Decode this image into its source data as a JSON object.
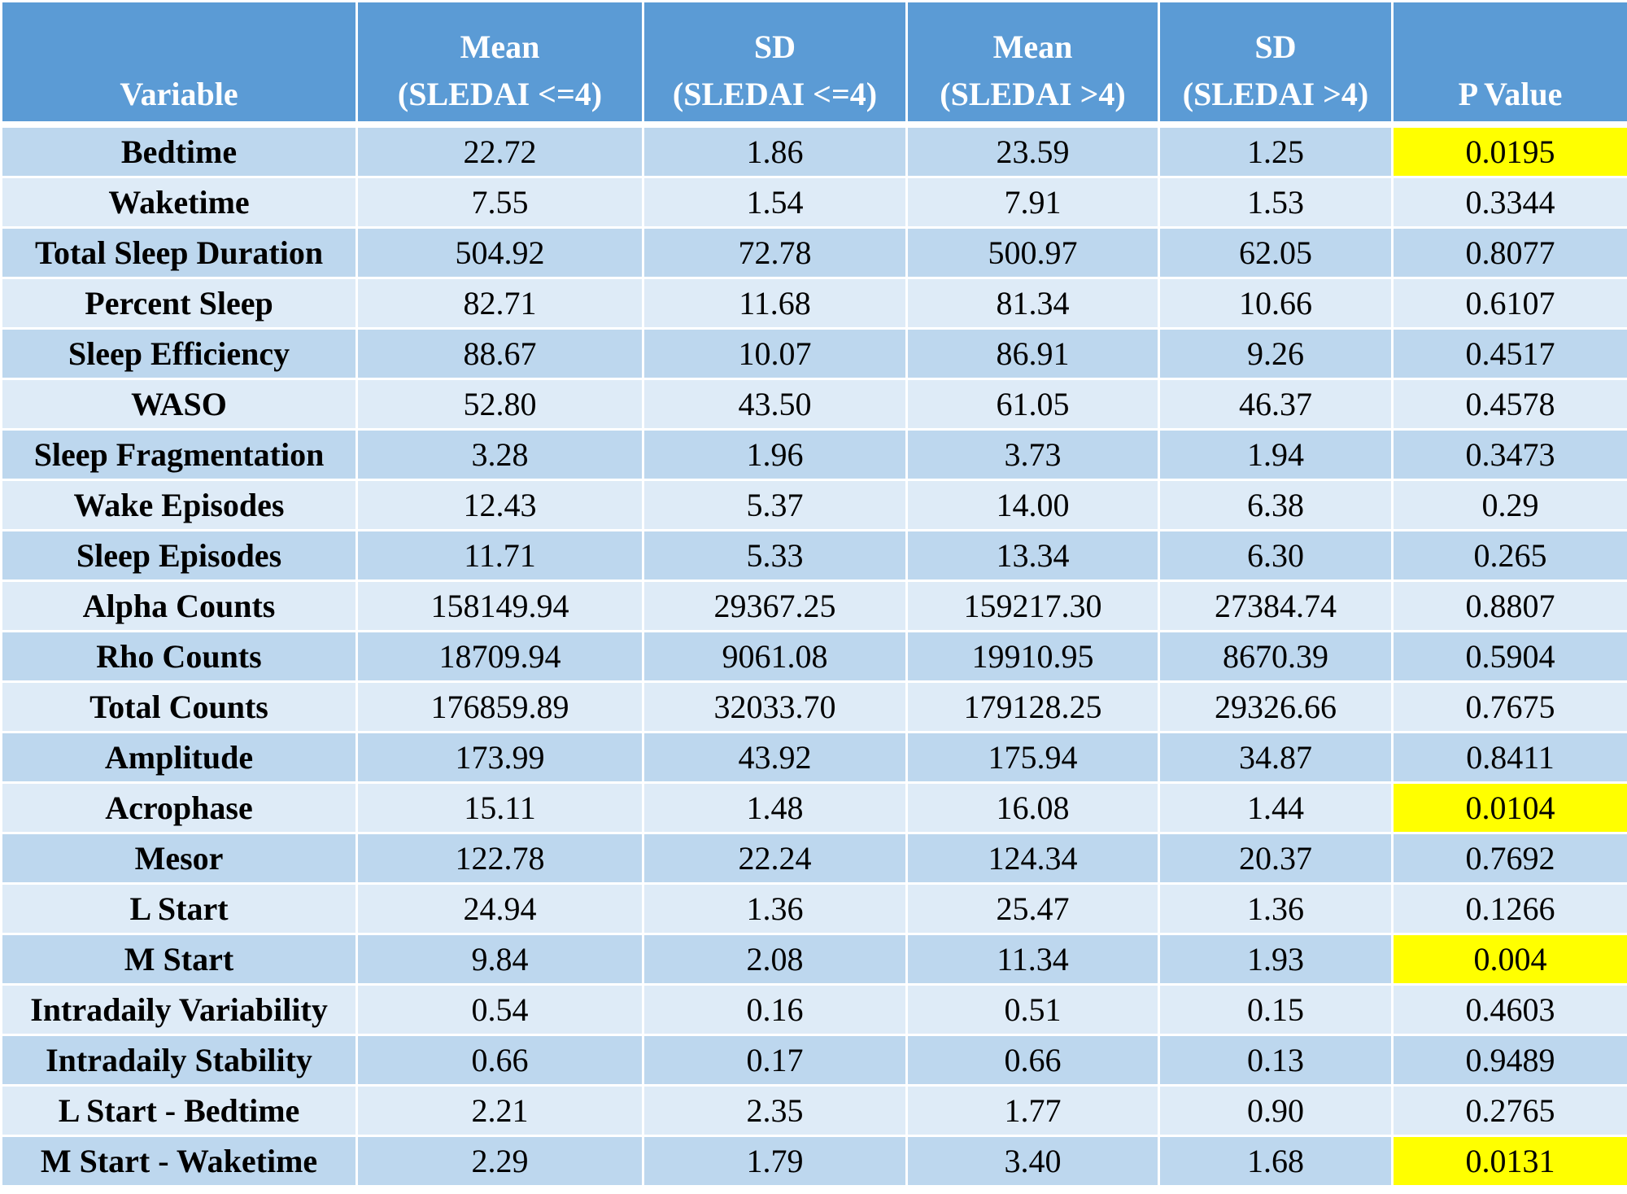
{
  "table": {
    "header": [
      [
        "Variable"
      ],
      [
        "Mean",
        "(SLEDAI <=4)"
      ],
      [
        "SD",
        "(SLEDAI <=4)"
      ],
      [
        "Mean",
        "(SLEDAI >4)"
      ],
      [
        "SD",
        "(SLEDAI >4)"
      ],
      [
        "P Value"
      ]
    ],
    "rows": [
      [
        "Bedtime",
        "22.72",
        "1.86",
        "23.59",
        "1.25",
        "0.0195"
      ],
      [
        "Waketime",
        "7.55",
        "1.54",
        "7.91",
        "1.53",
        "0.3344"
      ],
      [
        "Total Sleep Duration",
        "504.92",
        "72.78",
        "500.97",
        "62.05",
        "0.8077"
      ],
      [
        "Percent Sleep",
        "82.71",
        "11.68",
        "81.34",
        "10.66",
        "0.6107"
      ],
      [
        "Sleep Efficiency",
        "88.67",
        "10.07",
        "86.91",
        "9.26",
        "0.4517"
      ],
      [
        "WASO",
        "52.80",
        "43.50",
        "61.05",
        "46.37",
        "0.4578"
      ],
      [
        "Sleep Fragmentation",
        "3.28",
        "1.96",
        "3.73",
        "1.94",
        "0.3473"
      ],
      [
        "Wake Episodes",
        "12.43",
        "5.37",
        "14.00",
        "6.38",
        "0.29"
      ],
      [
        "Sleep Episodes",
        "11.71",
        "5.33",
        "13.34",
        "6.30",
        "0.265"
      ],
      [
        "Alpha Counts",
        "158149.94",
        "29367.25",
        "159217.30",
        "27384.74",
        "0.8807"
      ],
      [
        "Rho Counts",
        "18709.94",
        "9061.08",
        "19910.95",
        "8670.39",
        "0.5904"
      ],
      [
        "Total Counts",
        "176859.89",
        "32033.70",
        "179128.25",
        "29326.66",
        "0.7675"
      ],
      [
        "Amplitude",
        "173.99",
        "43.92",
        "175.94",
        "34.87",
        "0.8411"
      ],
      [
        "Acrophase",
        "15.11",
        "1.48",
        "16.08",
        "1.44",
        "0.0104"
      ],
      [
        "Mesor",
        "122.78",
        "22.24",
        "124.34",
        "20.37",
        "0.7692"
      ],
      [
        "L Start",
        "24.94",
        "1.36",
        "25.47",
        "1.36",
        "0.1266"
      ],
      [
        "M Start",
        "9.84",
        "2.08",
        "11.34",
        "1.93",
        "0.004"
      ],
      [
        "Intradaily Variability",
        "0.54",
        "0.16",
        "0.51",
        "0.15",
        "0.4603"
      ],
      [
        "Intradaily Stability",
        "0.66",
        "0.17",
        "0.66",
        "0.13",
        "0.9489"
      ],
      [
        "L Start - Bedtime",
        "2.21",
        "2.35",
        "1.77",
        "0.90",
        "0.2765"
      ],
      [
        "M Start - Waketime",
        "2.29",
        "1.79",
        "3.40",
        "1.68",
        "0.0131"
      ]
    ],
    "highlighted_rows": [
      0,
      13,
      16,
      20
    ],
    "highlight_color": "#ffff00"
  }
}
